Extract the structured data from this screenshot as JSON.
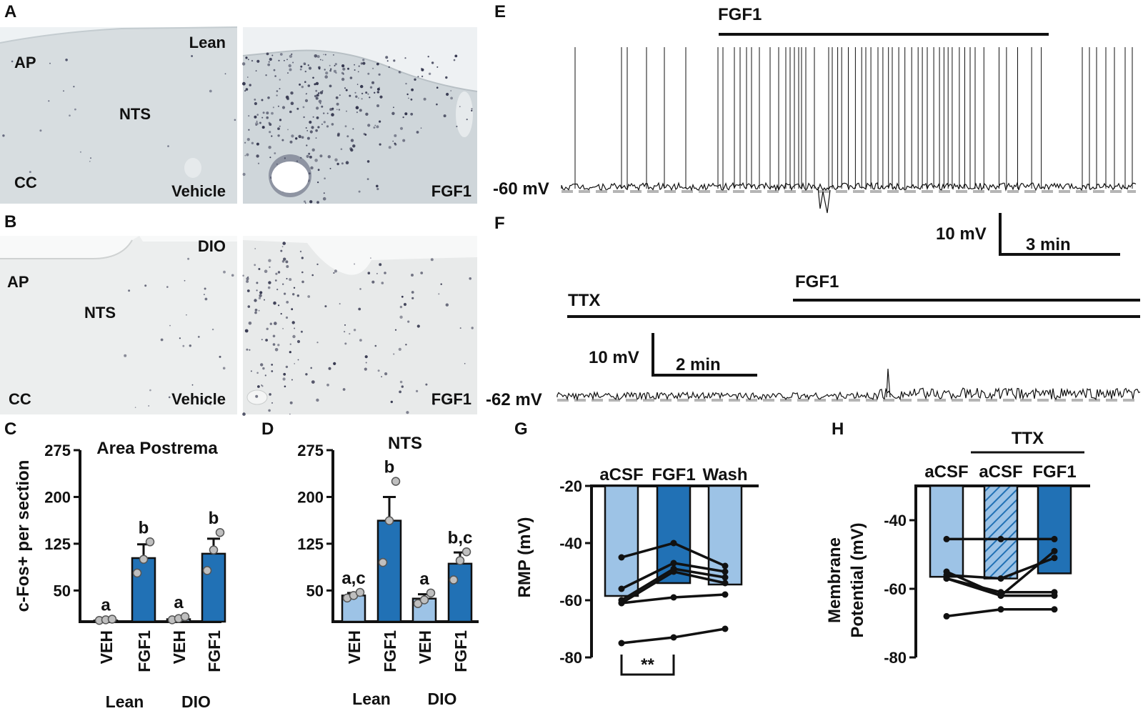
{
  "panels": {
    "A": {
      "letter": "A",
      "left": {
        "labels": [
          "AP",
          "NTS",
          "CC"
        ],
        "top_right": "Lean",
        "bottom_right": "Vehicle"
      },
      "right": {
        "bottom_right": "FGF1"
      }
    },
    "B": {
      "letter": "B",
      "left": {
        "labels": [
          "AP",
          "NTS",
          "CC"
        ],
        "top_right": "DIO",
        "bottom_right": "Vehicle"
      },
      "right": {
        "bottom_right": "FGF1"
      }
    },
    "E": {
      "letter": "E",
      "drug": "FGF1",
      "baseline": "-60 mV",
      "scale_v": "10 mV",
      "scale_t": "3 min"
    },
    "F": {
      "letter": "F",
      "drug1": "TTX",
      "drug2": "FGF1",
      "baseline": "-62 mV",
      "scale_v": "10 mV",
      "scale_t": "2 min"
    }
  },
  "chart_data": [
    {
      "panel": "C",
      "type": "bar",
      "title": "Area Postrema",
      "ylabel": "c-Fos+ per section",
      "ylim": [
        0,
        275
      ],
      "yticks": [
        50,
        125,
        200,
        275
      ],
      "categories": [
        "VEH",
        "FGF1",
        "VEH",
        "FGF1"
      ],
      "groups": [
        "Lean",
        "DIO"
      ],
      "values": [
        2,
        102,
        4,
        109
      ],
      "sem": [
        1,
        22,
        2,
        24
      ],
      "letters": [
        "a",
        "b",
        "a",
        "b"
      ],
      "points": [
        [
          2,
          3,
          4
        ],
        [
          78,
          100,
          128
        ],
        [
          3,
          5,
          8
        ],
        [
          82,
          115,
          143
        ]
      ],
      "colors": [
        "#9dc3e6",
        "#2171b5",
        "#9dc3e6",
        "#2171b5"
      ]
    },
    {
      "panel": "D",
      "type": "bar",
      "title": "NTS",
      "ylim": [
        0,
        275
      ],
      "yticks": [
        50,
        125,
        200,
        275
      ],
      "categories": [
        "VEH",
        "FGF1",
        "VEH",
        "FGF1"
      ],
      "groups": [
        "Lean",
        "DIO"
      ],
      "values": [
        42,
        162,
        37,
        93
      ],
      "sem": [
        4,
        38,
        7,
        18
      ],
      "letters": [
        "a,c",
        "b",
        "a",
        "b,c"
      ],
      "points": [
        [
          38,
          42,
          47
        ],
        [
          95,
          162,
          225
        ],
        [
          29,
          35,
          46
        ],
        [
          67,
          98,
          112
        ]
      ],
      "colors": [
        "#9dc3e6",
        "#2171b5",
        "#9dc3e6",
        "#2171b5"
      ]
    },
    {
      "panel": "G",
      "type": "bar",
      "ylabel": "RMP (mV)",
      "ylim": [
        -80,
        -20
      ],
      "yticks": [
        -20,
        -40,
        -60,
        -80
      ],
      "categories": [
        "aCSF",
        "FGF1",
        "Wash"
      ],
      "values": [
        -58.5,
        -54,
        -54.5
      ],
      "colors": [
        "#9dc3e6",
        "#2171b5",
        "#9dc3e6"
      ],
      "lines": [
        [
          -45,
          -40,
          -48
        ],
        [
          -56,
          -47,
          -50
        ],
        [
          -60,
          -49,
          -52
        ],
        [
          -61,
          -50,
          -54
        ],
        [
          -61,
          -59,
          -58
        ],
        [
          -75,
          -73,
          -70
        ]
      ],
      "significance": "**"
    },
    {
      "panel": "H",
      "type": "bar",
      "ylabel": "Membrane Potential (mV)",
      "ylim": [
        -80,
        -30
      ],
      "yticks": [
        -40,
        -60,
        -80
      ],
      "categories": [
        "aCSF",
        "aCSF",
        "FGF1"
      ],
      "bracket_label": "TTX",
      "values": [
        -56.5,
        -57,
        -55.5
      ],
      "colors": [
        "#9dc3e6",
        "#9dc3e6",
        "#2171b5"
      ],
      "hatched": [
        false,
        true,
        false
      ],
      "lines": [
        [
          -45.5,
          -45.5,
          -45.5
        ],
        [
          -55,
          -62,
          -49
        ],
        [
          -56,
          -57,
          -51
        ],
        [
          -57,
          -61,
          -61
        ],
        [
          -57,
          -62,
          -62
        ],
        [
          -68,
          -66,
          -66
        ]
      ]
    }
  ]
}
